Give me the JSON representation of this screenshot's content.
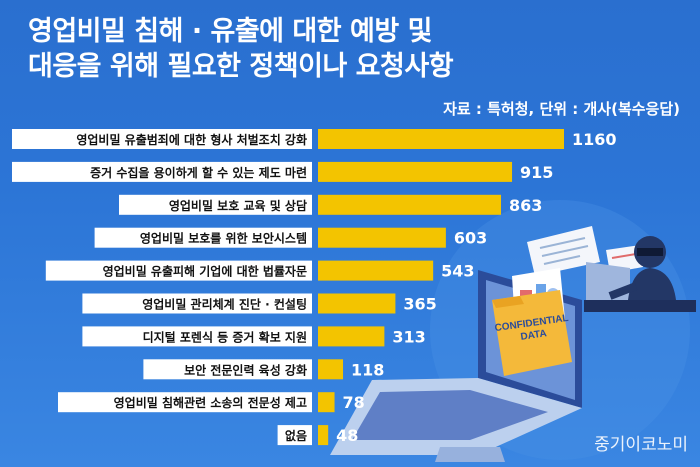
{
  "title_line1": "영업비밀 침해 · 유출에 대한 예방 및",
  "title_line2": "대응을 위해 필요한 정책이나 요청사항",
  "source": "자료 : 특허청, 단위 : 개사(복수응답)",
  "credit": "중기이코노미",
  "illustration": {
    "document_text_1": "CONFIDENTIAL",
    "document_text_2": "DATA"
  },
  "colors": {
    "background": "#2c75d6",
    "bar": "#f3c400",
    "label_box": "#ffffff"
  },
  "chart_data": {
    "type": "bar",
    "orientation": "horizontal",
    "categories": [
      "영업비밀 유출범죄에 대한 형사 처벌조치 강화",
      "증거 수집을 용이하게 할 수 있는 제도 마련",
      "영업비밀 보호 교육 및 상담",
      "영업비밀 보호를 위한 보안시스템",
      "영업비밀 유출피해 기업에 대한 법률자문",
      "영업비밀 관리체계 진단 · 컨설팅",
      "디지털 포렌식 등 증거 확보 지원",
      "보안 전문인력 육성 강화",
      "영업비밀 침해관련 소송의 전문성 제고",
      "없음"
    ],
    "values": [
      1160,
      915,
      863,
      603,
      543,
      365,
      313,
      118,
      78,
      48
    ],
    "value_labels": [
      "1160",
      "915",
      "863",
      "603",
      "543",
      "365",
      "313",
      "118",
      "78",
      "48"
    ],
    "xlim": [
      0,
      1160
    ],
    "grid": false,
    "legend": "none"
  }
}
